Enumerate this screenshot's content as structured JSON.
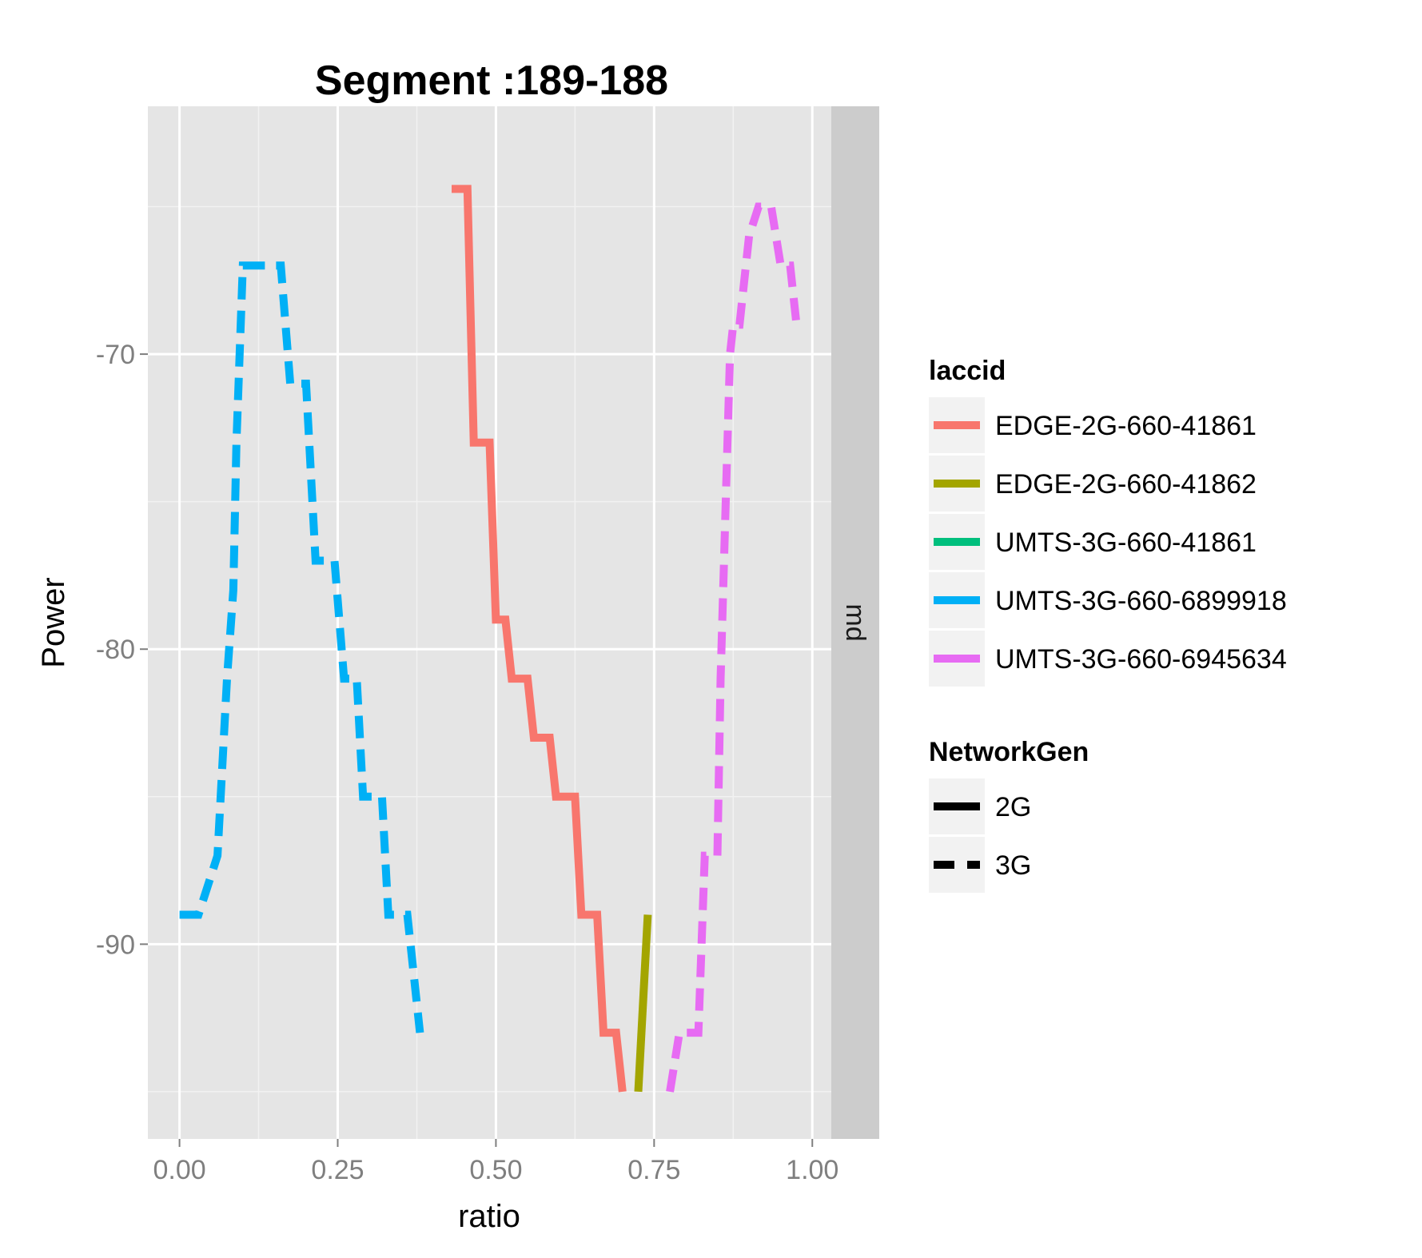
{
  "chart_data": {
    "type": "line",
    "title": "Segment :189-188",
    "xlabel": "ratio",
    "ylabel": "Power",
    "xlim": [
      -0.05,
      1.03
    ],
    "ylim": [
      -96.6,
      -61.6
    ],
    "x_ticks": [
      0,
      0.25,
      0.5,
      0.75,
      1.0
    ],
    "x_tick_labels": [
      "0.00",
      "0.25",
      "0.50",
      "0.75",
      "1.00"
    ],
    "y_ticks": [
      -90,
      -80,
      -70
    ],
    "y_tick_labels": [
      "-90",
      "-80",
      "-70"
    ],
    "facet_strip": "md",
    "grid": true,
    "legend_position": "right",
    "legend": {
      "color_title": "laccid",
      "linetype_title": "NetworkGen",
      "linetypes": [
        {
          "label": "2G",
          "dash": "solid"
        },
        {
          "label": "3G",
          "dash": "dashed"
        }
      ]
    },
    "series": [
      {
        "name": "EDGE-2G-660-41861",
        "color": "#F8766D",
        "network": "2G",
        "points": [
          [
            0.43,
            -64.4
          ],
          [
            0.455,
            -64.4
          ],
          [
            0.465,
            -73
          ],
          [
            0.49,
            -73
          ],
          [
            0.5,
            -79
          ],
          [
            0.515,
            -79
          ],
          [
            0.525,
            -81
          ],
          [
            0.55,
            -81
          ],
          [
            0.56,
            -83
          ],
          [
            0.585,
            -83
          ],
          [
            0.595,
            -85
          ],
          [
            0.625,
            -85
          ],
          [
            0.635,
            -89
          ],
          [
            0.66,
            -89
          ],
          [
            0.67,
            -93
          ],
          [
            0.685,
            -93
          ],
          [
            0.69,
            -93
          ],
          [
            0.7,
            -95
          ]
        ]
      },
      {
        "name": "EDGE-2G-660-41862",
        "color": "#A3A500",
        "network": "2G",
        "points": [
          [
            0.725,
            -95
          ],
          [
            0.74,
            -89
          ]
        ]
      },
      {
        "name": "UMTS-3G-660-41861",
        "color": "#00BF7D",
        "network": "3G",
        "points": []
      },
      {
        "name": "UMTS-3G-660-6899918",
        "color": "#00B0F6",
        "network": "3G",
        "points": [
          [
            0.0,
            -89
          ],
          [
            0.03,
            -89
          ],
          [
            0.06,
            -87
          ],
          [
            0.075,
            -81
          ],
          [
            0.085,
            -78
          ],
          [
            0.09,
            -73
          ],
          [
            0.1,
            -67
          ],
          [
            0.16,
            -67
          ],
          [
            0.175,
            -71
          ],
          [
            0.2,
            -71
          ],
          [
            0.215,
            -77
          ],
          [
            0.245,
            -77
          ],
          [
            0.26,
            -81
          ],
          [
            0.28,
            -81
          ],
          [
            0.29,
            -85
          ],
          [
            0.32,
            -85
          ],
          [
            0.33,
            -89
          ],
          [
            0.36,
            -89
          ],
          [
            0.38,
            -93
          ]
        ]
      },
      {
        "name": "UMTS-3G-660-6945634",
        "color": "#E76BF3",
        "network": "3G",
        "points": [
          [
            0.775,
            -95
          ],
          [
            0.79,
            -93
          ],
          [
            0.82,
            -93
          ],
          [
            0.83,
            -87
          ],
          [
            0.85,
            -87
          ],
          [
            0.855,
            -81
          ],
          [
            0.87,
            -70
          ],
          [
            0.875,
            -69
          ],
          [
            0.885,
            -69
          ],
          [
            0.9,
            -66
          ],
          [
            0.915,
            -65
          ],
          [
            0.935,
            -65
          ],
          [
            0.95,
            -67
          ],
          [
            0.965,
            -67
          ],
          [
            0.975,
            -69
          ]
        ]
      }
    ]
  }
}
